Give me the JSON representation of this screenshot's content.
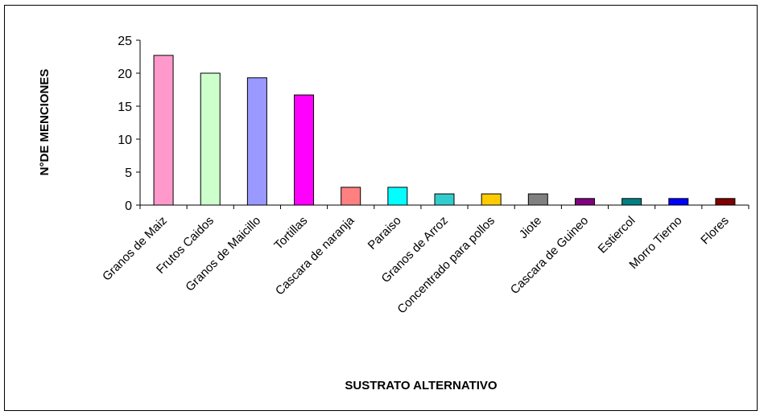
{
  "chart_data": {
    "type": "bar",
    "title": "",
    "xlabel": "SUSTRATO ALTERNATIVO",
    "ylabel": "N°DE MENCIONES",
    "ylim": [
      0,
      25
    ],
    "yticks": [
      0,
      5,
      10,
      15,
      20,
      25
    ],
    "grid": false,
    "legend": "none",
    "categories": [
      "Granos de Maiz",
      "Frutos Caidos",
      "Granos de Maicillo",
      "Tortillas",
      "Cascara de naranja",
      "Paraiso",
      "Granos de Arroz",
      "Concentrado para pollos",
      "Jiote",
      "Cascara de Guineo",
      "Estiercol",
      "Morro  Tierno",
      "Flores"
    ],
    "values": [
      22.7,
      20,
      19.3,
      16.7,
      2.7,
      2.7,
      1.7,
      1.7,
      1.7,
      1,
      1,
      1,
      1
    ],
    "colors": [
      "#ff99cc",
      "#ccffcc",
      "#9999ff",
      "#ff00ff",
      "#ff8080",
      "#00ffff",
      "#33cccc",
      "#ffcc00",
      "#808080",
      "#800080",
      "#008080",
      "#0000ff",
      "#800000"
    ]
  }
}
